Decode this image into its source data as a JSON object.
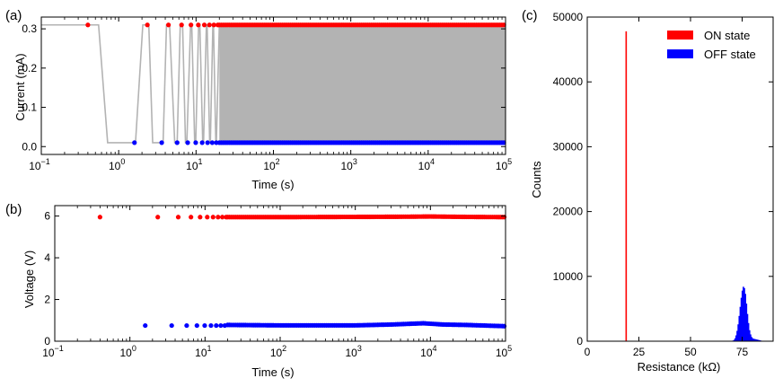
{
  "colors": {
    "on": "#ff0000",
    "off": "#0000ff",
    "trace": "#b3b3b3",
    "axis": "#000000"
  },
  "chart_data": [
    {
      "panel": "(a)",
      "type": "scatter",
      "xscale": "log",
      "xlim": [
        0.1,
        100000
      ],
      "ylim": [
        -0.02,
        0.33
      ],
      "xlabel": "Time (s)",
      "ylabel": "Current (mA)",
      "xticks": [
        0.1,
        1,
        10,
        100,
        1000,
        10000,
        100000
      ],
      "xtick_labels": [
        {
          "base": "10",
          "exp": "−1"
        },
        {
          "base": "10",
          "exp": "0"
        },
        {
          "base": "10",
          "exp": "1"
        },
        {
          "base": "10",
          "exp": "2"
        },
        {
          "base": "10",
          "exp": "3"
        },
        {
          "base": "10",
          "exp": "4"
        },
        {
          "base": "10",
          "exp": "5"
        }
      ],
      "yticks": [
        0.0,
        0.1,
        0.2,
        0.3
      ],
      "ytick_labels": [
        "0.0",
        "0.1",
        "0.2",
        "0.3"
      ],
      "series": [
        {
          "style": "gray-line",
          "x": [
            0.1,
            0.55,
            0.72,
            1.65,
            2.05,
            2.45,
            2.75,
            3.75,
            4.15,
            4.55,
            5.3,
            5.7,
            6.25,
            6.7,
            7.3,
            7.6,
            8.5,
            8.8,
            9.6,
            9.9,
            10.8,
            11.2,
            12.2,
            12.5,
            13.6,
            13.9,
            15.0,
            15.3,
            16.5,
            16.8,
            18.0,
            18.3,
            20.0,
            100000
          ],
          "y": [
            0.31,
            0.31,
            0.01,
            0.01,
            0.31,
            0.31,
            0.01,
            0.01,
            0.31,
            0.31,
            0.01,
            0.01,
            0.31,
            0.31,
            0.01,
            0.01,
            0.31,
            0.31,
            0.01,
            0.01,
            0.31,
            0.31,
            0.01,
            0.01,
            0.31,
            0.31,
            0.01,
            0.01,
            0.31,
            0.31,
            0.01,
            0.01,
            0.31,
            0.31
          ]
        },
        {
          "style": "filled-band",
          "x_start": 20,
          "x_end": 100000,
          "y_low": 0.01,
          "y_high": 0.31
        },
        {
          "style": "red-dots",
          "x": [
            0.4,
            2.35,
            4.4,
            6.5,
            8.6,
            10.7,
            12.8,
            14.9,
            17.0,
            19.1
          ],
          "y": [
            0.31,
            0.31,
            0.31,
            0.31,
            0.31,
            0.31,
            0.31,
            0.31,
            0.31,
            0.31
          ],
          "dense_from": 20,
          "dense_to": 100000,
          "dense_y": 0.31
        },
        {
          "style": "blue-dots",
          "x": [
            1.6,
            3.6,
            5.7,
            7.8,
            9.9,
            12.0,
            14.1,
            16.2,
            18.3
          ],
          "y": [
            0.01,
            0.01,
            0.01,
            0.01,
            0.01,
            0.01,
            0.01,
            0.01,
            0.01
          ],
          "dense_from": 20,
          "dense_to": 100000,
          "dense_y": 0.01
        }
      ]
    },
    {
      "panel": "(b)",
      "type": "scatter",
      "xscale": "log",
      "xlim": [
        0.1,
        100000
      ],
      "ylim": [
        0,
        6.5
      ],
      "xlabel": "Time (s)",
      "ylabel": "Voltage (V)",
      "xticks": [
        0.1,
        1,
        10,
        100,
        1000,
        10000,
        100000
      ],
      "xtick_labels": [
        {
          "base": "10",
          "exp": "−1"
        },
        {
          "base": "10",
          "exp": "0"
        },
        {
          "base": "10",
          "exp": "1"
        },
        {
          "base": "10",
          "exp": "2"
        },
        {
          "base": "10",
          "exp": "3"
        },
        {
          "base": "10",
          "exp": "4"
        },
        {
          "base": "10",
          "exp": "5"
        }
      ],
      "yticks": [
        0,
        2,
        4,
        6
      ],
      "ytick_labels": [
        "0",
        "2",
        "4",
        "6"
      ],
      "series": [
        {
          "style": "red-dots",
          "x": [
            0.4,
            2.35,
            4.4,
            6.5,
            8.6,
            10.7,
            12.8,
            14.9,
            17.0,
            19.1
          ],
          "y": [
            5.95,
            5.95,
            5.95,
            5.95,
            5.95,
            5.95,
            5.95,
            5.95,
            5.95,
            5.95
          ],
          "dense_curve": {
            "x": [
              20,
              100,
              1000,
              5000,
              10000,
              30000,
              100000
            ],
            "y": [
              5.95,
              5.95,
              5.96,
              5.97,
              5.98,
              5.96,
              5.95
            ]
          }
        },
        {
          "style": "blue-dots",
          "x": [
            1.6,
            3.6,
            5.7,
            7.8,
            9.9,
            12.0,
            14.1,
            16.2,
            18.3
          ],
          "y": [
            0.75,
            0.75,
            0.75,
            0.75,
            0.75,
            0.75,
            0.75,
            0.75,
            0.75
          ],
          "dense_curve": {
            "x": [
              20,
              100,
              1000,
              3000,
              8000,
              15000,
              30000,
              100000
            ],
            "y": [
              0.78,
              0.76,
              0.76,
              0.8,
              0.86,
              0.8,
              0.78,
              0.72
            ]
          }
        }
      ]
    },
    {
      "panel": "(c)",
      "type": "bar",
      "xlim": [
        0,
        90
      ],
      "ylim": [
        0,
        50000
      ],
      "xlabel": "Resistance (kΩ)",
      "ylabel": "Counts",
      "xticks": [
        0,
        25,
        50,
        75
      ],
      "xtick_labels": [
        "0",
        "25",
        "50",
        "75"
      ],
      "yticks": [
        0,
        10000,
        20000,
        30000,
        40000,
        50000
      ],
      "ytick_labels": [
        "0",
        "10000",
        "20000",
        "30000",
        "40000",
        "50000"
      ],
      "legend_position": "top-right",
      "series": [
        {
          "name": "ON state",
          "color": "#ff0000",
          "bin_width": 0.5,
          "bins": [
            18.75
          ],
          "counts": [
            47800
          ]
        },
        {
          "name": "OFF state",
          "color": "#0000ff",
          "bin_width": 0.5,
          "bins": [
            70.5,
            71.0,
            71.5,
            72.0,
            72.5,
            73.0,
            73.5,
            74.0,
            74.5,
            75.0,
            75.5,
            76.0,
            76.5,
            77.0,
            77.5,
            78.0,
            78.5,
            79.0,
            79.5,
            80.0,
            80.5,
            81.0,
            81.5,
            82.0,
            82.5,
            83.0,
            83.5,
            84.0,
            84.5,
            85.0
          ],
          "counts": [
            100,
            200,
            450,
            900,
            1600,
            2600,
            3900,
            5300,
            6700,
            7800,
            8400,
            8200,
            7300,
            5800,
            4200,
            2800,
            1700,
            1050,
            650,
            450,
            380,
            340,
            300,
            260,
            220,
            180,
            140,
            100,
            70,
            40
          ]
        }
      ]
    }
  ]
}
